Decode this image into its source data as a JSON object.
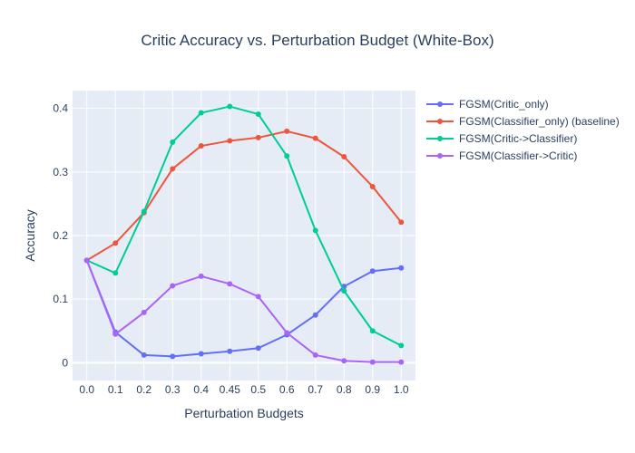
{
  "chart_data": {
    "type": "line",
    "title": "Critic Accuracy vs. Perturbation Budget (White-Box)",
    "xlabel": "Perturbation Budgets",
    "ylabel": "Accuracy",
    "categories": [
      "0.0",
      "0.1",
      "0.2",
      "0.3",
      "0.4",
      "0.45",
      "0.5",
      "0.6",
      "0.7",
      "0.8",
      "0.9",
      "1.0"
    ],
    "yticks": [
      0,
      0.1,
      0.2,
      0.3,
      0.4
    ],
    "ytick_labels": [
      "0",
      "0.1",
      "0.2",
      "0.3",
      "0.4"
    ],
    "ylim": [
      -0.028,
      0.428
    ],
    "grid": true,
    "legend_position": "top-right outside plot",
    "plot_bgcolor": "#e5ecf6",
    "series": [
      {
        "name": "FGSM(Critic_only)",
        "color": "#636efa",
        "values": [
          0.161,
          0.048,
          0.012,
          0.01,
          0.014,
          0.018,
          0.023,
          0.044,
          0.075,
          0.12,
          0.144,
          0.149
        ]
      },
      {
        "name": "FGSM(Classifier_only) (baseline)",
        "color": "#ef553b",
        "values": [
          0.161,
          0.188,
          0.236,
          0.305,
          0.341,
          0.349,
          0.354,
          0.364,
          0.353,
          0.324,
          0.277,
          0.221
        ]
      },
      {
        "name": "FGSM(Critic->Classifier)",
        "color": "#00cc96",
        "values": [
          0.161,
          0.141,
          0.238,
          0.347,
          0.393,
          0.403,
          0.391,
          0.325,
          0.208,
          0.113,
          0.05,
          0.027
        ]
      },
      {
        "name": "FGSM(Classifier->Critic)",
        "color": "#ab63fa",
        "values": [
          0.161,
          0.045,
          0.079,
          0.121,
          0.136,
          0.124,
          0.104,
          0.047,
          0.012,
          0.003,
          0.001,
          0.001
        ]
      }
    ]
  }
}
